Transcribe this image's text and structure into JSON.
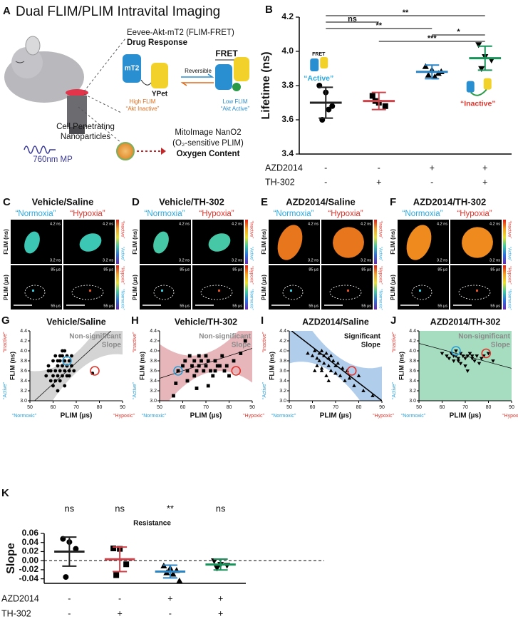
{
  "panel_a": {
    "label": "A",
    "title": "Dual FLIM/PLIM Intravital Imaging",
    "sensor": "Eevee-Akt-mT2 (FLIM-FRET)",
    "sensor_role": "Drug Response",
    "donor": "mT2",
    "acceptor": "YPet",
    "reversible": "Reversible",
    "fret": "FRET",
    "high": "High FLIM",
    "high_state": "“Akt Inactive”",
    "low": "Low FLIM",
    "low_state": "“Akt Active”",
    "np_line1": "Cell Penetrating",
    "np_line2": "Nanoparticles",
    "laser": "760nm MP",
    "probe": "MitoImage NanO2",
    "probe_detail": "(O₂-sensitive PLIM)",
    "probe_role": "Oxygen Content"
  },
  "image_panels": {
    "row_labels": [
      "FLIM (ns)",
      "PLIM (µs)"
    ],
    "flim_scale": [
      "4.2 ns",
      "3.2 ns"
    ],
    "plim_scale": [
      "85 µs",
      "55 µs"
    ],
    "flim_bar": [
      "“Inactive”",
      "“Active”"
    ],
    "plim_bar": [
      "“Hypoxic”",
      "“Normoxic”"
    ],
    "panels": [
      {
        "label": "C",
        "title": "Vehicle/Saline",
        "conditions": [
          "“Normoxia”",
          "“Hypoxia”"
        ],
        "color": "#3cc7b4"
      },
      {
        "label": "D",
        "title": "Vehicle/TH-302",
        "conditions": [
          "“Normoxia”",
          "“Hypoxia”"
        ],
        "color": "#46c8a6"
      },
      {
        "label": "E",
        "title": "AZD2014/Saline",
        "conditions": [
          "“Normoxia”",
          "“Hypoxia”"
        ],
        "color": "#e8761c"
      },
      {
        "label": "F",
        "title": "AZD2014/TH-302",
        "conditions": [
          "“Normoxia”",
          "“Hypoxia”"
        ],
        "color": "#ee8a1e"
      }
    ]
  },
  "chart_data": [
    {
      "type": "dotplot",
      "label": "B",
      "ylabel": "Lifetime (ns)",
      "ylim": [
        3.4,
        4.2
      ],
      "yticks": [
        3.4,
        3.6,
        3.8,
        {
          "value": 4,
          "label": "4.0"
        },
        4.2
      ],
      "groups": [
        {
          "values": [
            3.8,
            3.76,
            3.68,
            3.6,
            3.66
          ],
          "mean": 3.7,
          "sd": 0.09,
          "marker": "circle",
          "point_color": "#000000",
          "color": "#222222"
        },
        {
          "values": [
            3.74,
            3.7,
            3.68,
            3.71
          ],
          "mean": 3.71,
          "sd": 0.05,
          "marker": "square",
          "point_color": "#000000",
          "color": "#d0424a"
        },
        {
          "values": [
            3.91,
            3.89,
            3.87,
            3.86,
            3.85,
            3.88
          ],
          "mean": 3.88,
          "sd": 0.04,
          "marker": "triangle",
          "point_color": "#000000",
          "color": "#2b84c4"
        },
        {
          "values": [
            4.04,
            3.97,
            3.95,
            3.9
          ],
          "mean": 3.96,
          "sd": 0.07,
          "marker": "triangle-down",
          "point_color": "#000000",
          "color": "#17935a"
        }
      ],
      "rows": [
        {
          "label": "AZD2014",
          "signs": [
            "-",
            "-",
            "+",
            "+"
          ]
        },
        {
          "label": "TH-302",
          "signs": [
            "-",
            "+",
            "-",
            "+"
          ]
        }
      ],
      "brackets": [
        {
          "label": "**",
          "from": 0,
          "to": 3
        },
        {
          "label": "ns",
          "from": 0,
          "to": 1
        },
        {
          "label": "**",
          "from": 0,
          "to": 2
        },
        {
          "label": "*",
          "from": 2,
          "to": 3
        },
        {
          "label": "***",
          "from": 1,
          "to": 3
        }
      ],
      "active_label": "“Active”",
      "inactive_label": "“Inactive”",
      "fret_label": "FRET"
    },
    {
      "type": "scatter",
      "label": "G",
      "title": "Vehicle/Saline",
      "xlabel": "PLIM (µs)",
      "ylabel": "FLIM (ns)",
      "xlim": [
        50,
        90
      ],
      "xticks": [
        50,
        60,
        70,
        80,
        90
      ],
      "ylim": [
        3.0,
        4.4
      ],
      "yticks": [
        {
          "value": 3,
          "label": "3.0"
        },
        3.2,
        3.4,
        3.6,
        3.8,
        {
          "value": 4,
          "label": "4.0"
        },
        4.2,
        4.4
      ],
      "marker": "circle",
      "color": "#000000",
      "band_color": "#cfcfcf",
      "fill_plot": false,
      "x": [
        57,
        58,
        59,
        59,
        60,
        60,
        61,
        61,
        62,
        62,
        62,
        63,
        63,
        63,
        64,
        64,
        64,
        65,
        65,
        65,
        66,
        66,
        66,
        67,
        67,
        68,
        68,
        69,
        60,
        61,
        63,
        65,
        58,
        62,
        64,
        66,
        67,
        77
      ],
      "y": [
        3.5,
        3.7,
        3.4,
        3.6,
        3.8,
        3.3,
        3.6,
        3.9,
        3.5,
        3.7,
        3.2,
        3.8,
        3.6,
        3.4,
        3.9,
        3.7,
        3.5,
        3.6,
        3.8,
        4.0,
        3.7,
        3.9,
        3.5,
        3.8,
        3.6,
        3.7,
        3.9,
        3.6,
        3.5,
        3.4,
        3.9,
        3.3,
        3.6,
        3.8,
        4.0,
        3.7,
        3.5,
        3.55
      ],
      "fit": {
        "x": [
          52,
          85
        ],
        "y": [
          3.0,
          4.4
        ]
      },
      "highlights": [
        {
          "x": 66,
          "y": 3.8,
          "color": "#2a9fd6"
        },
        {
          "x": 78,
          "y": 3.6,
          "color": "#e0332b"
        }
      ],
      "annotation": [
        "Non-significant",
        "Slope"
      ],
      "annotation_color": "#8a8a8a",
      "y_side": [
        "“Active”",
        "“Inactive”"
      ],
      "x_side": [
        "“Normoxic”",
        "“Hypoxic”"
      ],
      "side_colors": [
        "#2a9fd6",
        "#e0332b"
      ]
    },
    {
      "type": "scatter",
      "label": "H",
      "title": "Vehicle/TH-302",
      "xlabel": "PLIM (µs)",
      "ylabel": "FLIM (ns)",
      "xlim": [
        50,
        90
      ],
      "xticks": [
        50,
        60,
        70,
        80,
        90
      ],
      "ylim": [
        3.0,
        4.4
      ],
      "yticks": [
        {
          "value": 3,
          "label": "3.0"
        },
        3.2,
        3.4,
        3.6,
        3.8,
        {
          "value": 4,
          "label": "4.0"
        },
        4.2,
        4.4
      ],
      "marker": "square",
      "color": "#000000",
      "band_color": "#e3aeb3",
      "fill_plot": false,
      "x": [
        56,
        58,
        60,
        61,
        62,
        63,
        64,
        65,
        65,
        66,
        67,
        67,
        68,
        69,
        70,
        70,
        71,
        72,
        73,
        74,
        75,
        76,
        77,
        78,
        80,
        82,
        85,
        87,
        57,
        62,
        66,
        71,
        74,
        79
      ],
      "y": [
        3.1,
        3.6,
        3.7,
        3.8,
        3.6,
        3.9,
        3.7,
        3.8,
        3.5,
        3.6,
        3.9,
        3.7,
        3.8,
        3.6,
        3.7,
        3.9,
        3.8,
        3.6,
        3.5,
        3.8,
        3.7,
        3.7,
        3.9,
        3.6,
        3.5,
        3.8,
        3.95,
        4.2,
        3.35,
        3.4,
        3.25,
        3.3,
        3.6,
        3.7
      ],
      "fit": {
        "x": [
          50,
          90
        ],
        "y": [
          3.45,
          4.05
        ]
      },
      "highlights": [
        {
          "x": 58,
          "y": 3.6,
          "color": "#2a9fd6"
        },
        {
          "x": 83,
          "y": 3.6,
          "color": "#e0332b"
        }
      ],
      "annotation": [
        "Non-significant",
        "Slope"
      ],
      "annotation_color": "#8a8a8a",
      "y_side": [
        "“Active”",
        "“Inactive”"
      ],
      "x_side": [
        "“Normoxic”",
        "“Hypoxic”"
      ],
      "side_colors": [
        "#2a9fd6",
        "#e0332b"
      ]
    },
    {
      "type": "scatter",
      "label": "I",
      "title": "AZD2014/Saline",
      "xlabel": "PLIM (µs)",
      "ylabel": "FLIM (ns)",
      "xlim": [
        50,
        90
      ],
      "xticks": [
        50,
        60,
        70,
        80,
        90
      ],
      "ylim": [
        3.0,
        4.4
      ],
      "yticks": [
        {
          "value": 3,
          "label": "3.0"
        },
        3.2,
        3.4,
        3.6,
        3.8,
        {
          "value": 4,
          "label": "4.0"
        },
        4.2,
        4.4
      ],
      "marker": "triangle",
      "color": "#000000",
      "band_color": "#a8c8ea",
      "fill_plot": false,
      "x": [
        58,
        60,
        61,
        62,
        62,
        63,
        63,
        64,
        64,
        65,
        65,
        66,
        66,
        67,
        67,
        68,
        68,
        69,
        70,
        70,
        71,
        72,
        73,
        74,
        75,
        76,
        78,
        80,
        82,
        86,
        61,
        64,
        67,
        70
      ],
      "y": [
        3.95,
        3.9,
        4.0,
        3.85,
        3.7,
        3.95,
        3.8,
        4.0,
        3.6,
        3.9,
        3.75,
        3.95,
        3.5,
        3.85,
        3.7,
        3.9,
        3.6,
        3.8,
        3.55,
        3.7,
        3.75,
        3.5,
        3.65,
        3.4,
        3.6,
        3.45,
        3.3,
        3.5,
        3.2,
        3.1,
        3.6,
        3.65,
        3.4,
        3.55
      ],
      "fit": {
        "x": [
          51,
          90
        ],
        "y": [
          4.4,
          3.0
        ]
      },
      "highlights": [
        {
          "x": 77,
          "y": 3.6,
          "color": "#e0332b"
        }
      ],
      "annotation": [
        "Significant",
        "Slope"
      ],
      "annotation_color": "#111111",
      "y_side": [
        "“Active”",
        "“Inactive”"
      ],
      "x_side": [
        "“Normoxic”",
        "“Hypoxic”"
      ],
      "side_colors": [
        "#2a9fd6",
        "#e0332b"
      ]
    },
    {
      "type": "scatter",
      "label": "J",
      "title": "AZD2014/TH-302",
      "xlabel": "PLIM (µs)",
      "ylabel": "FLIM (ns)",
      "xlim": [
        50,
        90
      ],
      "xticks": [
        50,
        60,
        70,
        80,
        90
      ],
      "ylim": [
        3.0,
        4.4
      ],
      "yticks": [
        {
          "value": 3,
          "label": "3.0"
        },
        3.2,
        3.4,
        3.6,
        3.8,
        {
          "value": 4,
          "label": "4.0"
        },
        4.2,
        4.4
      ],
      "marker": "triangle-down",
      "color": "#000000",
      "band_color": "#a6dcbf",
      "fill_plot": true,
      "x": [
        60,
        62,
        63,
        64,
        65,
        66,
        66,
        67,
        68,
        68,
        69,
        70,
        70,
        71,
        72,
        73,
        74,
        75,
        76,
        77,
        78,
        80,
        82,
        65,
        67,
        71,
        73
      ],
      "y": [
        3.95,
        3.9,
        3.85,
        3.95,
        3.8,
        3.9,
        4.0,
        3.85,
        3.95,
        3.75,
        3.9,
        3.85,
        3.7,
        3.9,
        3.95,
        3.85,
        3.8,
        3.9,
        3.75,
        3.85,
        3.9,
        3.95,
        3.8,
        3.9,
        3.8,
        3.6,
        3.9
      ],
      "fit": {
        "x": [
          50,
          90
        ],
        "y": [
          4.15,
          3.65
        ]
      },
      "highlights": [
        {
          "x": 66,
          "y": 4.0,
          "color": "#2a9fd6"
        },
        {
          "x": 79,
          "y": 3.95,
          "color": "#e0332b"
        }
      ],
      "annotation": [
        "Non-significant",
        "Slope"
      ],
      "annotation_color": "#8a8a8a",
      "y_side": [
        "“Active”",
        "“Inactive”"
      ],
      "x_side": [
        "“Normoxic”",
        "“Hypoxic”"
      ],
      "side_colors": [
        "#2a9fd6",
        "#e0332b"
      ]
    },
    {
      "type": "dotplot",
      "label": "K",
      "title": "Resistance",
      "ylabel": "Slope",
      "ylim": [
        -0.05,
        0.06
      ],
      "yticks": [
        0.06,
        0.04,
        0.02,
        {
          "value": 0,
          "label": "0.00"
        },
        -0.02,
        -0.04
      ],
      "reference_line": 0,
      "significance": [
        "ns",
        "ns",
        "**",
        "ns"
      ],
      "groups": [
        {
          "values": [
            0.048,
            0.041,
            0.026,
            -0.036
          ],
          "mean": 0.02,
          "sd": 0.032,
          "marker": "circle",
          "point_color": "#000000",
          "color": "#222222"
        },
        {
          "values": [
            0.027,
            0.026,
            -0.008,
            -0.032
          ],
          "mean": 0.003,
          "sd": 0.027,
          "marker": "square",
          "point_color": "#000000",
          "color": "#d0424a"
        },
        {
          "values": [
            -0.012,
            -0.017,
            -0.022,
            -0.027,
            -0.03,
            -0.045
          ],
          "mean": -0.024,
          "sd": 0.014,
          "marker": "triangle",
          "point_color": "#000000",
          "color": "#2b84c4"
        },
        {
          "values": [
            0.0,
            -0.008,
            -0.01,
            -0.016
          ],
          "mean": -0.0085,
          "sd": 0.012,
          "marker": "triangle-down",
          "point_color": "#000000",
          "color": "#17935a"
        }
      ],
      "rows": [
        {
          "label": "AZD2014",
          "signs": [
            "-",
            "-",
            "+",
            "+"
          ]
        },
        {
          "label": "TH-302",
          "signs": [
            "-",
            "+",
            "-",
            "+"
          ]
        }
      ]
    }
  ]
}
